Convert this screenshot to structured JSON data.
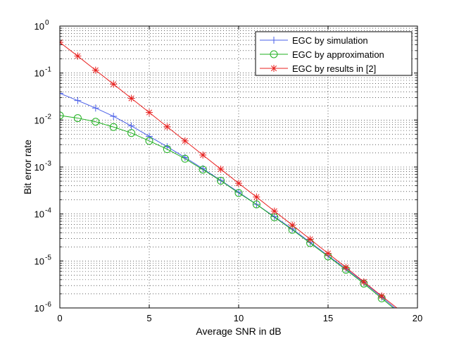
{
  "chart_data": {
    "type": "line",
    "title": "",
    "xlabel": "Average SNR in dB",
    "ylabel": "Bit error rate",
    "xlim": [
      0,
      20
    ],
    "ylim": [
      1e-06,
      1
    ],
    "yscale": "log",
    "grid": true,
    "x_ticks": [
      "0",
      "5",
      "10",
      "15",
      "20"
    ],
    "y_tick_exponents": [
      "0",
      "-1",
      "-2",
      "-3",
      "-4",
      "-5",
      "-6"
    ],
    "y_tick_base": "10",
    "legend_position": "top-right",
    "x": [
      0,
      1,
      2,
      3,
      4,
      5,
      6,
      7,
      8,
      9,
      10,
      11,
      12,
      13,
      14,
      15,
      16,
      17,
      18
    ],
    "series": [
      {
        "name": "EGC by simulation",
        "color": "#4a5fe8",
        "marker": "plus",
        "values": [
          0.037,
          0.026,
          0.018,
          0.012,
          0.0075,
          0.0045,
          0.0027,
          0.0016,
          0.00092,
          0.00052,
          0.00029,
          0.00016,
          8.8e-05,
          4.8e-05,
          2.5e-05,
          1.3e-05,
          6.8e-06,
          3.5e-06,
          1.7e-06
        ]
      },
      {
        "name": "EGC by approximation",
        "color": "#1fb01f",
        "marker": "circle",
        "values": [
          0.0125,
          0.011,
          0.0092,
          0.0071,
          0.0053,
          0.0036,
          0.0024,
          0.0015,
          0.00088,
          0.00051,
          0.00028,
          0.00016,
          8.5e-05,
          4.6e-05,
          2.4e-05,
          1.25e-05,
          6.5e-06,
          3.3e-06,
          1.6e-06
        ]
      },
      {
        "name": "EGC by results in [2]",
        "color": "#e8201f",
        "marker": "asterisk",
        "values": [
          0.45,
          0.23,
          0.115,
          0.058,
          0.029,
          0.0145,
          0.0072,
          0.0036,
          0.0018,
          0.0009,
          0.00045,
          0.00023,
          0.000115,
          5.8e-05,
          2.9e-05,
          1.45e-05,
          7.3e-06,
          3.6e-06,
          1.8e-06
        ]
      }
    ]
  }
}
